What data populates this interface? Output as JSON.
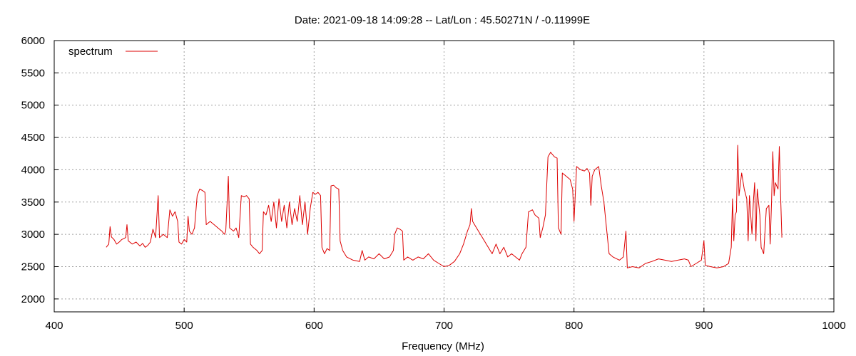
{
  "chart_data": {
    "type": "line",
    "title": "Date: 2021-09-18 14:09:28  --  Lat/Lon : 45.50271N / -0.11999E",
    "xlabel": "Frequency (MHz)",
    "ylabel": "",
    "xlim": [
      400,
      1000
    ],
    "ylim": [
      1800,
      6000
    ],
    "x_ticks": [
      400,
      500,
      600,
      700,
      800,
      900,
      1000
    ],
    "y_ticks": [
      2000,
      2500,
      3000,
      3500,
      4000,
      4500,
      5000,
      5500,
      6000
    ],
    "grid": true,
    "legend_position": "top-left",
    "series": [
      {
        "name": "spectrum",
        "color": "#dd0000",
        "points": [
          [
            440,
            2800
          ],
          [
            442,
            2850
          ],
          [
            443,
            3120
          ],
          [
            444,
            2960
          ],
          [
            446,
            2920
          ],
          [
            448,
            2850
          ],
          [
            450,
            2880
          ],
          [
            452,
            2920
          ],
          [
            455,
            2950
          ],
          [
            456,
            3150
          ],
          [
            457,
            2900
          ],
          [
            460,
            2850
          ],
          [
            463,
            2880
          ],
          [
            466,
            2820
          ],
          [
            468,
            2860
          ],
          [
            470,
            2800
          ],
          [
            472,
            2830
          ],
          [
            474,
            2880
          ],
          [
            476,
            3080
          ],
          [
            478,
            2950
          ],
          [
            480,
            3600
          ],
          [
            481,
            2950
          ],
          [
            484,
            3000
          ],
          [
            487,
            2950
          ],
          [
            489,
            3380
          ],
          [
            491,
            3280
          ],
          [
            493,
            3350
          ],
          [
            495,
            3200
          ],
          [
            496,
            2880
          ],
          [
            498,
            2850
          ],
          [
            500,
            2920
          ],
          [
            502,
            2880
          ],
          [
            503,
            3280
          ],
          [
            504,
            3050
          ],
          [
            506,
            3000
          ],
          [
            508,
            3100
          ],
          [
            510,
            3600
          ],
          [
            512,
            3700
          ],
          [
            514,
            3680
          ],
          [
            516,
            3650
          ],
          [
            517,
            3150
          ],
          [
            520,
            3200
          ],
          [
            523,
            3150
          ],
          [
            526,
            3100
          ],
          [
            529,
            3050
          ],
          [
            531,
            3000
          ],
          [
            532,
            3050
          ],
          [
            534,
            3900
          ],
          [
            535,
            3100
          ],
          [
            538,
            3050
          ],
          [
            540,
            3100
          ],
          [
            542,
            2950
          ],
          [
            544,
            3600
          ],
          [
            546,
            3580
          ],
          [
            548,
            3600
          ],
          [
            550,
            3550
          ],
          [
            551,
            2850
          ],
          [
            553,
            2800
          ],
          [
            556,
            2750
          ],
          [
            558,
            2700
          ],
          [
            560,
            2750
          ],
          [
            561,
            3350
          ],
          [
            563,
            3300
          ],
          [
            565,
            3450
          ],
          [
            567,
            3200
          ],
          [
            569,
            3500
          ],
          [
            571,
            3100
          ],
          [
            573,
            3550
          ],
          [
            575,
            3200
          ],
          [
            577,
            3450
          ],
          [
            579,
            3100
          ],
          [
            581,
            3500
          ],
          [
            583,
            3150
          ],
          [
            585,
            3400
          ],
          [
            587,
            3200
          ],
          [
            589,
            3600
          ],
          [
            591,
            3150
          ],
          [
            593,
            3500
          ],
          [
            595,
            3000
          ],
          [
            597,
            3400
          ],
          [
            599,
            3650
          ],
          [
            601,
            3620
          ],
          [
            603,
            3650
          ],
          [
            605,
            3600
          ],
          [
            606,
            2800
          ],
          [
            608,
            2700
          ],
          [
            610,
            2780
          ],
          [
            612,
            2750
          ],
          [
            613,
            3750
          ],
          [
            615,
            3760
          ],
          [
            617,
            3720
          ],
          [
            619,
            3700
          ],
          [
            620,
            2900
          ],
          [
            622,
            2750
          ],
          [
            625,
            2650
          ],
          [
            630,
            2600
          ],
          [
            635,
            2580
          ],
          [
            637,
            2750
          ],
          [
            639,
            2600
          ],
          [
            642,
            2650
          ],
          [
            646,
            2620
          ],
          [
            650,
            2700
          ],
          [
            654,
            2620
          ],
          [
            658,
            2650
          ],
          [
            661,
            2750
          ],
          [
            662,
            3000
          ],
          [
            664,
            3100
          ],
          [
            666,
            3080
          ],
          [
            668,
            3050
          ],
          [
            669,
            2600
          ],
          [
            672,
            2650
          ],
          [
            676,
            2600
          ],
          [
            680,
            2650
          ],
          [
            684,
            2620
          ],
          [
            688,
            2700
          ],
          [
            692,
            2600
          ],
          [
            696,
            2550
          ],
          [
            700,
            2500
          ],
          [
            704,
            2520
          ],
          [
            708,
            2580
          ],
          [
            712,
            2700
          ],
          [
            715,
            2850
          ],
          [
            718,
            3050
          ],
          [
            720,
            3150
          ],
          [
            721,
            3400
          ],
          [
            722,
            3200
          ],
          [
            725,
            3100
          ],
          [
            728,
            3000
          ],
          [
            731,
            2900
          ],
          [
            734,
            2800
          ],
          [
            737,
            2700
          ],
          [
            740,
            2850
          ],
          [
            743,
            2700
          ],
          [
            746,
            2800
          ],
          [
            749,
            2650
          ],
          [
            752,
            2700
          ],
          [
            755,
            2650
          ],
          [
            758,
            2600
          ],
          [
            760,
            2700
          ],
          [
            763,
            2800
          ],
          [
            765,
            3350
          ],
          [
            768,
            3380
          ],
          [
            770,
            3300
          ],
          [
            773,
            3250
          ],
          [
            774,
            2950
          ],
          [
            776,
            3100
          ],
          [
            778,
            3300
          ],
          [
            780,
            4200
          ],
          [
            782,
            4270
          ],
          [
            785,
            4200
          ],
          [
            787,
            4180
          ],
          [
            788,
            3100
          ],
          [
            790,
            3000
          ],
          [
            791,
            3950
          ],
          [
            794,
            3900
          ],
          [
            797,
            3850
          ],
          [
            799,
            3700
          ],
          [
            800,
            3200
          ],
          [
            802,
            4050
          ],
          [
            805,
            4000
          ],
          [
            808,
            3980
          ],
          [
            810,
            4020
          ],
          [
            812,
            3950
          ],
          [
            813,
            3450
          ],
          [
            814,
            3900
          ],
          [
            816,
            4000
          ],
          [
            819,
            4050
          ],
          [
            821,
            3750
          ],
          [
            823,
            3500
          ],
          [
            825,
            3100
          ],
          [
            827,
            2700
          ],
          [
            830,
            2650
          ],
          [
            835,
            2600
          ],
          [
            838,
            2650
          ],
          [
            840,
            3050
          ],
          [
            841,
            2480
          ],
          [
            845,
            2500
          ],
          [
            850,
            2480
          ],
          [
            855,
            2550
          ],
          [
            860,
            2580
          ],
          [
            865,
            2620
          ],
          [
            870,
            2600
          ],
          [
            875,
            2580
          ],
          [
            880,
            2600
          ],
          [
            885,
            2620
          ],
          [
            888,
            2600
          ],
          [
            890,
            2500
          ],
          [
            894,
            2550
          ],
          [
            898,
            2600
          ],
          [
            900,
            2900
          ],
          [
            901,
            2520
          ],
          [
            905,
            2500
          ],
          [
            910,
            2480
          ],
          [
            915,
            2500
          ],
          [
            919,
            2550
          ],
          [
            921,
            2800
          ],
          [
            922,
            3550
          ],
          [
            923,
            2900
          ],
          [
            924,
            3300
          ],
          [
            925,
            3350
          ],
          [
            926,
            4380
          ],
          [
            927,
            3600
          ],
          [
            929,
            3950
          ],
          [
            931,
            3700
          ],
          [
            933,
            3550
          ],
          [
            934,
            2900
          ],
          [
            935,
            3600
          ],
          [
            937,
            3000
          ],
          [
            938,
            3500
          ],
          [
            939,
            3800
          ],
          [
            940,
            2900
          ],
          [
            941,
            3700
          ],
          [
            943,
            3300
          ],
          [
            944,
            2800
          ],
          [
            946,
            2700
          ],
          [
            948,
            3400
          ],
          [
            950,
            3450
          ],
          [
            951,
            2850
          ],
          [
            952,
            3500
          ],
          [
            953,
            4280
          ],
          [
            954,
            3600
          ],
          [
            955,
            3800
          ],
          [
            956,
            3750
          ],
          [
            957,
            3700
          ],
          [
            958,
            4360
          ],
          [
            959,
            3600
          ],
          [
            960,
            2950
          ]
        ]
      }
    ]
  }
}
